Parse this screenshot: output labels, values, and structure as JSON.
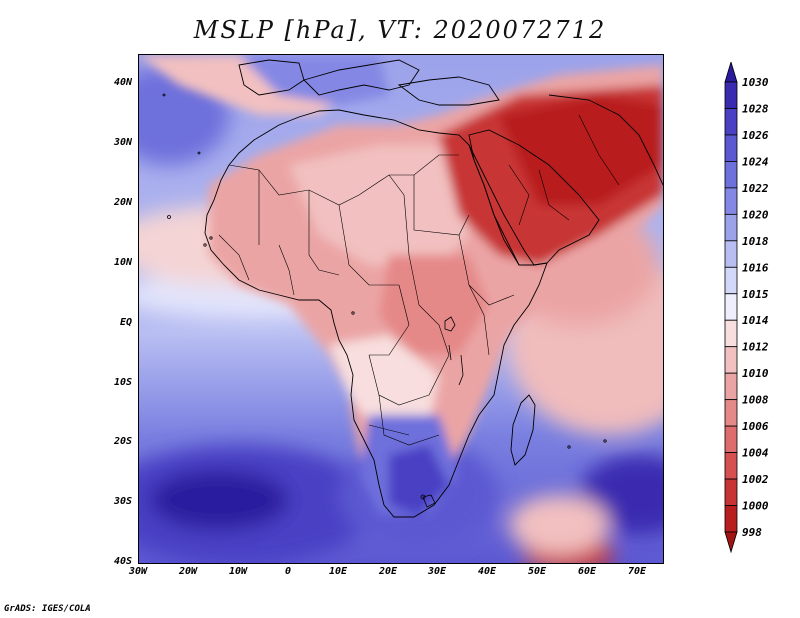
{
  "title": "MSLP [hPa], VT: 2020072712",
  "credit": "GrADS: IGES/COLA",
  "map": {
    "lat_labels": [
      "40N",
      "30N",
      "20N",
      "10N",
      "EQ",
      "10S",
      "20S",
      "30S",
      "40S"
    ],
    "lon_labels": [
      "30W",
      "20W",
      "10W",
      "0",
      "10E",
      "20E",
      "30E",
      "40E",
      "50E",
      "60E",
      "70E"
    ],
    "lat_range": [
      -40,
      45
    ],
    "lon_range": [
      -30,
      75
    ]
  },
  "colorbar": {
    "labels": [
      "1030",
      "1028",
      "1026",
      "1024",
      "1022",
      "1020",
      "1018",
      "1016",
      "1015",
      "1014",
      "1012",
      "1010",
      "1008",
      "1006",
      "1004",
      "1002",
      "1000",
      "998"
    ],
    "colors": [
      "#2a1a9e",
      "#3a2ab0",
      "#4a40c4",
      "#5c58d2",
      "#6e70dc",
      "#8488e4",
      "#9ca2ea",
      "#b8bef2",
      "#d4d8f8",
      "#eeeefc",
      "#f8dede",
      "#f2c0c0",
      "#eba4a4",
      "#e58888",
      "#de6c6c",
      "#d65050",
      "#c83434",
      "#b81e1e",
      "#a01414"
    ]
  },
  "colors": {
    "low": "#a01414",
    "high": "#2a1a9e",
    "ocean_mid": "#9ca2ea"
  }
}
